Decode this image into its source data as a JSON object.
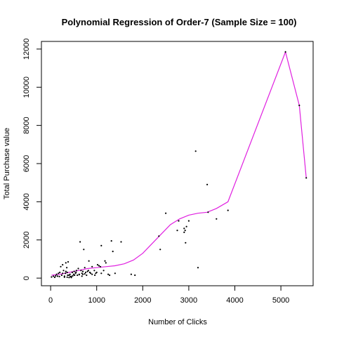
{
  "chart_data": {
    "type": "scatter",
    "title": "Polynomial Regression of Order-7 (Sample Size = 100)",
    "xlabel": "Number of Clicks",
    "ylabel": "Total Purchase value",
    "xlim": [
      -200,
      5700
    ],
    "ylim": [
      -400,
      12400
    ],
    "x_ticks": [
      0,
      1000,
      2000,
      3000,
      4000,
      5000
    ],
    "y_ticks": [
      0,
      2000,
      4000,
      6000,
      8000,
      10000,
      12000
    ],
    "colors": {
      "points": "#000000",
      "fit_line": "#e020e0",
      "frame": "#000000"
    },
    "series": [
      {
        "kind": "points",
        "x": [
          20,
          60,
          90,
          110,
          130,
          150,
          170,
          190,
          200,
          220,
          240,
          260,
          280,
          300,
          320,
          330,
          350,
          360,
          380,
          400,
          420,
          450,
          470,
          500,
          520,
          540,
          560,
          580,
          600,
          620,
          640,
          660,
          680,
          700,
          720,
          740,
          760,
          800,
          830,
          870,
          900,
          950,
          980,
          1000,
          1020,
          1080,
          1100,
          1150,
          1200,
          1250,
          1320,
          1350,
          1400,
          1530,
          1750,
          1830,
          2350,
          2380,
          2500,
          2750,
          2780,
          2900,
          2900,
          2920,
          2930,
          2950,
          3000,
          3150,
          3200,
          3400,
          3420,
          3600,
          3850,
          5100,
          5400,
          5550,
          260,
          300,
          330,
          360,
          400,
          450,
          480,
          550,
          620,
          680,
          700,
          740,
          780,
          820,
          850,
          900,
          960,
          1050,
          1100,
          1180,
          1280,
          370,
          430,
          510
        ],
        "y": [
          60,
          100,
          40,
          120,
          200,
          100,
          250,
          80,
          300,
          600,
          150,
          700,
          400,
          50,
          250,
          800,
          550,
          300,
          850,
          30,
          200,
          80,
          300,
          200,
          150,
          250,
          400,
          150,
          500,
          200,
          1900,
          400,
          250,
          200,
          1500,
          550,
          300,
          350,
          900,
          250,
          600,
          400,
          250,
          300,
          700,
          600,
          1700,
          400,
          800,
          200,
          1950,
          1400,
          250,
          1900,
          200,
          150,
          2200,
          1500,
          3400,
          2500,
          3000,
          2600,
          2400,
          2500,
          1850,
          2700,
          3000,
          6650,
          550,
          4900,
          3450,
          3100,
          3550,
          11850,
          9050,
          5250,
          250,
          100,
          350,
          50,
          150,
          30,
          120,
          300,
          180,
          100,
          350,
          220,
          150,
          400,
          300,
          200,
          150,
          650,
          250,
          900,
          150,
          150,
          80,
          350
        ]
      },
      {
        "kind": "line",
        "x": [
          20,
          200,
          400,
          600,
          800,
          1000,
          1200,
          1400,
          1600,
          1800,
          2000,
          2200,
          2400,
          2600,
          2800,
          3000,
          3200,
          3400,
          3600,
          3850,
          5100,
          5400,
          5550
        ],
        "y": [
          150,
          200,
          300,
          400,
          500,
          550,
          600,
          650,
          750,
          950,
          1300,
          1800,
          2300,
          2800,
          3100,
          3300,
          3400,
          3450,
          3650,
          4000,
          11850,
          9050,
          5250
        ]
      }
    ]
  }
}
